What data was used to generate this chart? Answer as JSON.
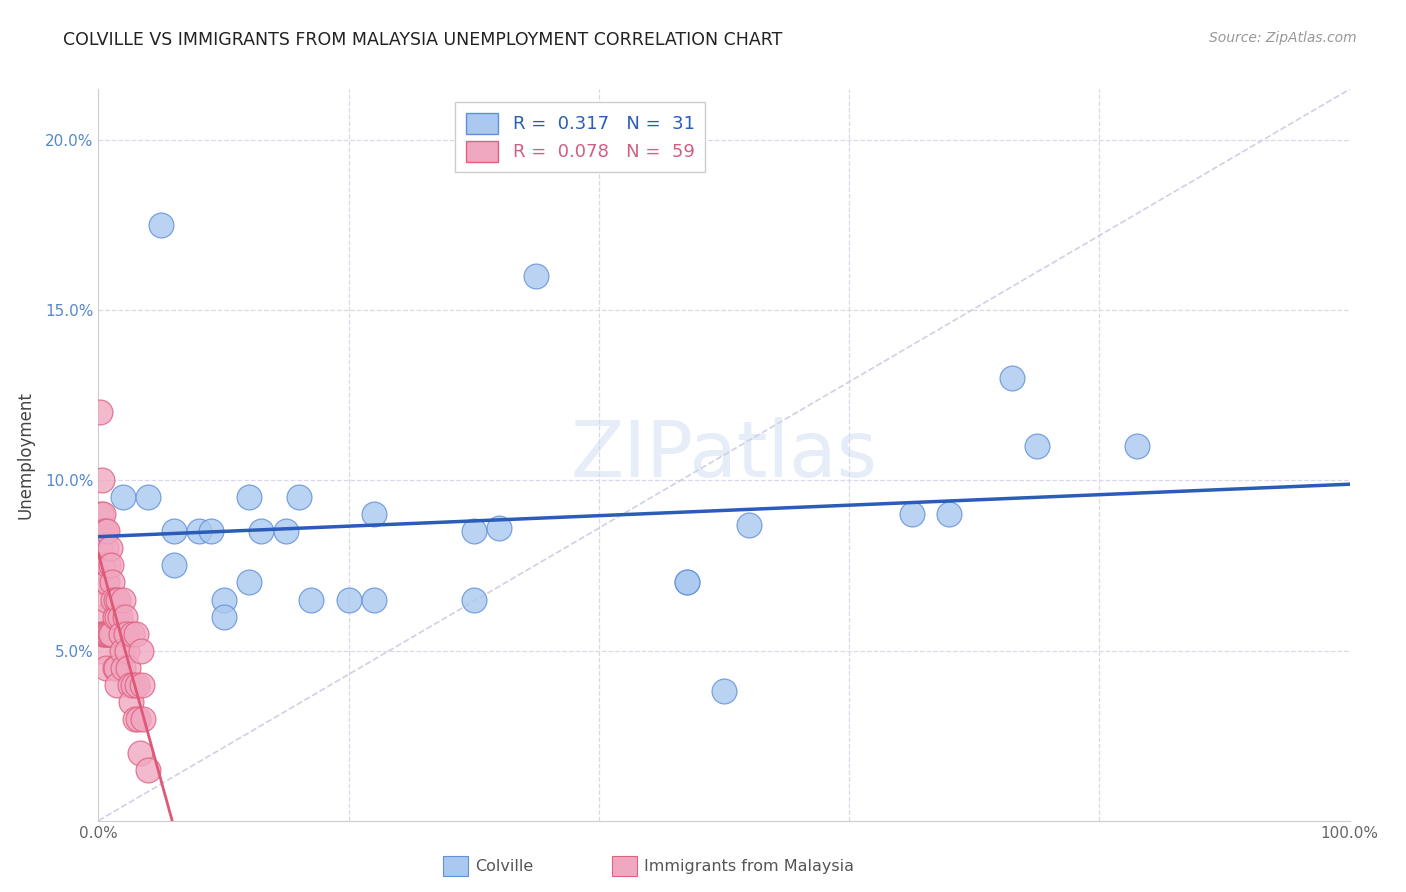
{
  "title": "COLVILLE VS IMMIGRANTS FROM MALAYSIA UNEMPLOYMENT CORRELATION CHART",
  "source": "Source: ZipAtlas.com",
  "ylabel": "Unemployment",
  "xlim": [
    0,
    1.0
  ],
  "ylim": [
    0,
    0.215
  ],
  "colville_color": "#aac8f0",
  "malaysia_color": "#f0a8c0",
  "colville_edge": "#6090d8",
  "malaysia_edge": "#e06080",
  "trend_blue": "#2a5cb8",
  "trend_pink": "#e05878",
  "trend_diag_color": "#c8c8e0",
  "grid_color": "#d8d8e8",
  "watermark": "ZIPatlas",
  "colville_x": [
    0.02,
    0.05,
    0.04,
    0.06,
    0.06,
    0.08,
    0.09,
    0.1,
    0.1,
    0.12,
    0.12,
    0.13,
    0.15,
    0.16,
    0.17,
    0.2,
    0.22,
    0.22,
    0.3,
    0.3,
    0.32,
    0.35,
    0.47,
    0.47,
    0.5,
    0.52,
    0.65,
    0.68,
    0.73,
    0.75,
    0.83
  ],
  "colville_y": [
    0.095,
    0.175,
    0.095,
    0.085,
    0.075,
    0.085,
    0.085,
    0.065,
    0.06,
    0.095,
    0.07,
    0.085,
    0.085,
    0.095,
    0.065,
    0.065,
    0.065,
    0.09,
    0.065,
    0.085,
    0.086,
    0.16,
    0.07,
    0.07,
    0.038,
    0.087,
    0.09,
    0.09,
    0.13,
    0.11,
    0.11
  ],
  "malaysia_x": [
    0.001,
    0.001,
    0.001,
    0.002,
    0.002,
    0.002,
    0.003,
    0.003,
    0.003,
    0.003,
    0.004,
    0.004,
    0.004,
    0.005,
    0.005,
    0.005,
    0.006,
    0.006,
    0.006,
    0.007,
    0.007,
    0.007,
    0.008,
    0.008,
    0.009,
    0.009,
    0.01,
    0.01,
    0.011,
    0.012,
    0.013,
    0.013,
    0.014,
    0.014,
    0.015,
    0.015,
    0.016,
    0.017,
    0.018,
    0.019,
    0.02,
    0.02,
    0.021,
    0.022,
    0.023,
    0.024,
    0.025,
    0.026,
    0.027,
    0.028,
    0.029,
    0.03,
    0.031,
    0.032,
    0.033,
    0.034,
    0.035,
    0.036,
    0.04
  ],
  "malaysia_y": [
    0.12,
    0.08,
    0.06,
    0.09,
    0.075,
    0.055,
    0.1,
    0.085,
    0.07,
    0.05,
    0.09,
    0.075,
    0.055,
    0.085,
    0.07,
    0.055,
    0.08,
    0.065,
    0.045,
    0.085,
    0.07,
    0.055,
    0.075,
    0.055,
    0.08,
    0.055,
    0.075,
    0.055,
    0.07,
    0.065,
    0.06,
    0.045,
    0.065,
    0.045,
    0.06,
    0.04,
    0.065,
    0.06,
    0.055,
    0.05,
    0.065,
    0.045,
    0.06,
    0.055,
    0.05,
    0.045,
    0.04,
    0.035,
    0.055,
    0.04,
    0.03,
    0.055,
    0.04,
    0.03,
    0.02,
    0.05,
    0.04,
    0.03,
    0.015
  ]
}
